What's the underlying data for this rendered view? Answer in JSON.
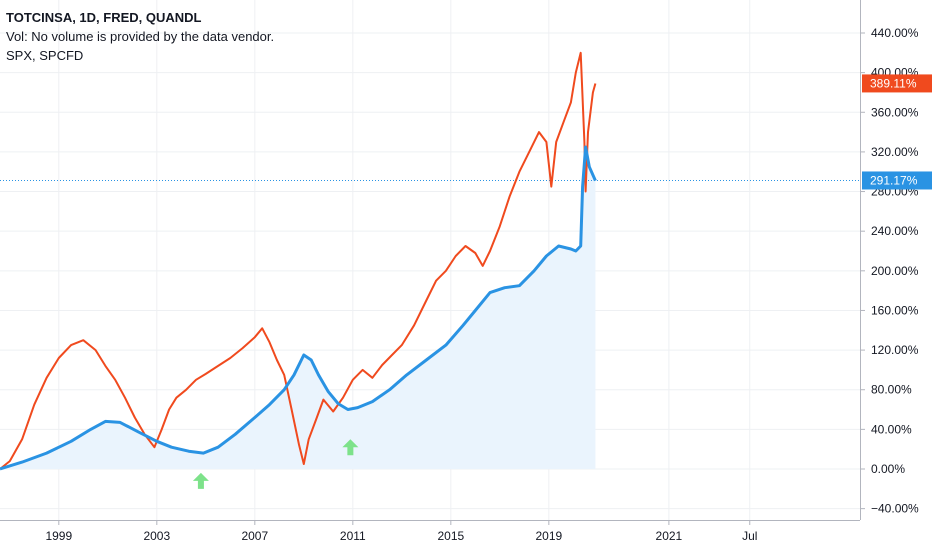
{
  "legend": {
    "title": "TOTCINSA, 1D, FRED, QUANDL",
    "volume_note": "Vol: No volume is provided by the data vendor.",
    "compare": "SPX, SPCFD"
  },
  "colors": {
    "totcinsa": "#f04a1e",
    "spx": "#2a93e3",
    "spx_fill": "#eaf4fd",
    "grid": "#eef0f3",
    "up_arrow": "#7de28a"
  },
  "chart_data": {
    "type": "line",
    "title": "TOTCINSA, 1D, FRED, QUANDL",
    "xlabel": "",
    "ylabel": "",
    "ylim": [
      -40,
      460
    ],
    "yticks": [
      "440.00%",
      "400.00%",
      "360.00%",
      "320.00%",
      "280.00%",
      "240.00%",
      "200.00%",
      "160.00%",
      "120.00%",
      "80.00%",
      "40.00%",
      "0.00%",
      "−40.00%"
    ],
    "ytick_values": [
      440,
      400,
      360,
      320,
      280,
      240,
      200,
      160,
      120,
      80,
      40,
      0,
      -40
    ],
    "xticks": [
      {
        "label": "1999",
        "x": 1999
      },
      {
        "label": "2003",
        "x": 2003
      },
      {
        "label": "2007",
        "x": 2007
      },
      {
        "label": "2011",
        "x": 2011
      },
      {
        "label": "2015",
        "x": 2015
      },
      {
        "label": "2019",
        "x": 2019
      },
      {
        "label": "2021",
        "x": 2023.9
      },
      {
        "label": "Jul",
        "x": 2027.2
      }
    ],
    "xlim": [
      1996.6,
      2031.7
    ],
    "series": [
      {
        "name": "TOTCINSA",
        "last_value_label": "389.11%",
        "last_value": 389.11,
        "x": [
          1996.6,
          1997.0,
          1997.5,
          1998.0,
          1998.5,
          1999.0,
          1999.5,
          2000.0,
          2000.5,
          2000.9,
          2001.3,
          2001.7,
          2002.1,
          2002.5,
          2002.9,
          2003.2,
          2003.5,
          2003.8,
          2004.2,
          2004.6,
          2005.0,
          2005.5,
          2006.0,
          2006.5,
          2007.0,
          2007.3,
          2007.6,
          2007.9,
          2008.2,
          2008.5,
          2008.8,
          2009.0,
          2009.2,
          2009.5,
          2009.8,
          2010.2,
          2010.6,
          2011.0,
          2011.4,
          2011.8,
          2012.2,
          2012.6,
          2013.0,
          2013.5,
          2014.0,
          2014.4,
          2014.8,
          2015.2,
          2015.6,
          2016.0,
          2016.3,
          2016.6,
          2017.0,
          2017.4,
          2017.8,
          2018.2,
          2018.6,
          2018.9,
          2019.1,
          2019.3,
          2019.6,
          2019.9,
          2020.1,
          2020.3,
          2020.45,
          2020.5,
          2020.6,
          2020.8,
          2020.9
        ],
        "values": [
          0,
          8,
          30,
          65,
          92,
          112,
          125,
          130,
          120,
          104,
          90,
          72,
          52,
          35,
          22,
          40,
          60,
          72,
          80,
          90,
          96,
          104,
          112,
          122,
          133,
          142,
          128,
          110,
          95,
          60,
          25,
          5,
          30,
          50,
          70,
          58,
          72,
          90,
          100,
          92,
          105,
          115,
          125,
          145,
          170,
          190,
          200,
          215,
          225,
          218,
          205,
          220,
          245,
          275,
          300,
          320,
          340,
          330,
          285,
          330,
          350,
          370,
          400,
          420,
          330,
          280,
          340,
          380,
          389
        ]
      },
      {
        "name": "SPX, SPCFD",
        "last_value_label": "291.17%",
        "last_value": 291.17,
        "x": [
          1996.6,
          1997.5,
          1998.5,
          1999.5,
          2000.3,
          2000.9,
          2001.5,
          2002.2,
          2003.0,
          2003.6,
          2004.3,
          2004.9,
          2005.5,
          2006.2,
          2007.0,
          2007.6,
          2008.2,
          2008.6,
          2009.0,
          2009.3,
          2009.6,
          2010.0,
          2010.4,
          2010.8,
          2011.2,
          2011.8,
          2012.5,
          2013.2,
          2014.0,
          2014.8,
          2015.5,
          2016.0,
          2016.6,
          2017.2,
          2017.8,
          2018.4,
          2018.9,
          2019.4,
          2019.9,
          2020.1,
          2020.3,
          2020.38,
          2020.5,
          2020.65,
          2020.9
        ],
        "values": [
          0,
          7,
          16,
          28,
          40,
          48,
          47,
          38,
          28,
          22,
          18,
          16,
          22,
          35,
          52,
          65,
          80,
          95,
          115,
          110,
          95,
          78,
          66,
          60,
          62,
          68,
          80,
          95,
          110,
          125,
          145,
          160,
          178,
          183,
          185,
          200,
          215,
          225,
          222,
          220,
          225,
          285,
          325,
          305,
          291
        ]
      }
    ],
    "horizontal_line_value": 291.17,
    "annotations": [
      {
        "type": "up-arrow",
        "x": 2004.8,
        "y": -12
      },
      {
        "type": "up-arrow",
        "x": 2010.9,
        "y": 22
      }
    ]
  }
}
